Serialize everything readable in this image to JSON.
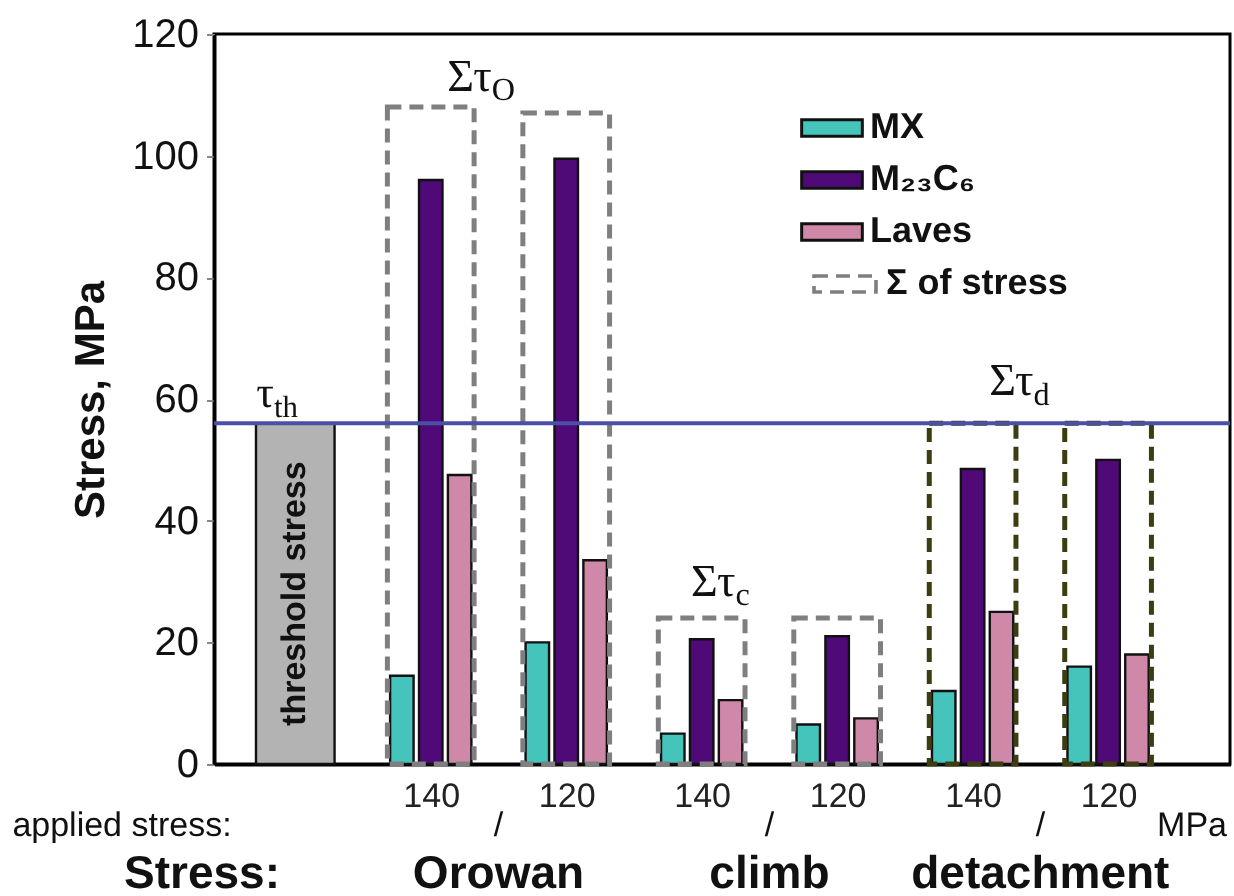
{
  "chart_data": {
    "type": "bar",
    "ylabel": "Stress, MPa",
    "categories": [
      null,
      "140",
      "120",
      "140",
      "120",
      "140",
      "120"
    ],
    "series": [
      {
        "name": "threshold stress",
        "color": "#b3b3b3",
        "values": [
          56,
          null,
          null,
          null,
          null,
          null,
          null
        ]
      },
      {
        "name": "MX",
        "color": "#45c4bc",
        "values": [
          null,
          14.5,
          20,
          5,
          6.5,
          12,
          16
        ]
      },
      {
        "name": "M₂₃C₆",
        "color": "#4f0a78",
        "values": [
          null,
          96,
          99.5,
          20.5,
          21,
          48.5,
          50
        ]
      },
      {
        "name": "Laves",
        "color": "#d088a8",
        "values": [
          null,
          47.5,
          33.5,
          10.5,
          7.5,
          25,
          18
        ]
      },
      {
        "name": "Σ of stress",
        "color": "#7f7f7f",
        "line_style": "dashed",
        "colors": [
          null,
          "#7f7f7f",
          "#7f7f7f",
          "#7f7f7f",
          "#7f7f7f",
          "#3d3d12",
          "#3d3d12"
        ],
        "values": [
          null,
          108,
          107,
          24,
          24,
          56,
          56
        ]
      }
    ],
    "ylim": [
      0,
      120
    ],
    "yticks": [
      0,
      20,
      40,
      60,
      80,
      100,
      120
    ],
    "legend": "top right",
    "ref_lines": [
      {
        "axis": "y",
        "value": 56,
        "label": "τ$_{th}$",
        "color": "#4b4fa6"
      }
    ],
    "annotations": [
      "Στ$_{O}$",
      "Στ$_{c}$",
      "Στ$_{d}$",
      "applied stress:",
      "/",
      "/",
      "/",
      "MPa",
      "Stress:",
      "Orowan",
      "climb",
      "detachment"
    ]
  }
}
